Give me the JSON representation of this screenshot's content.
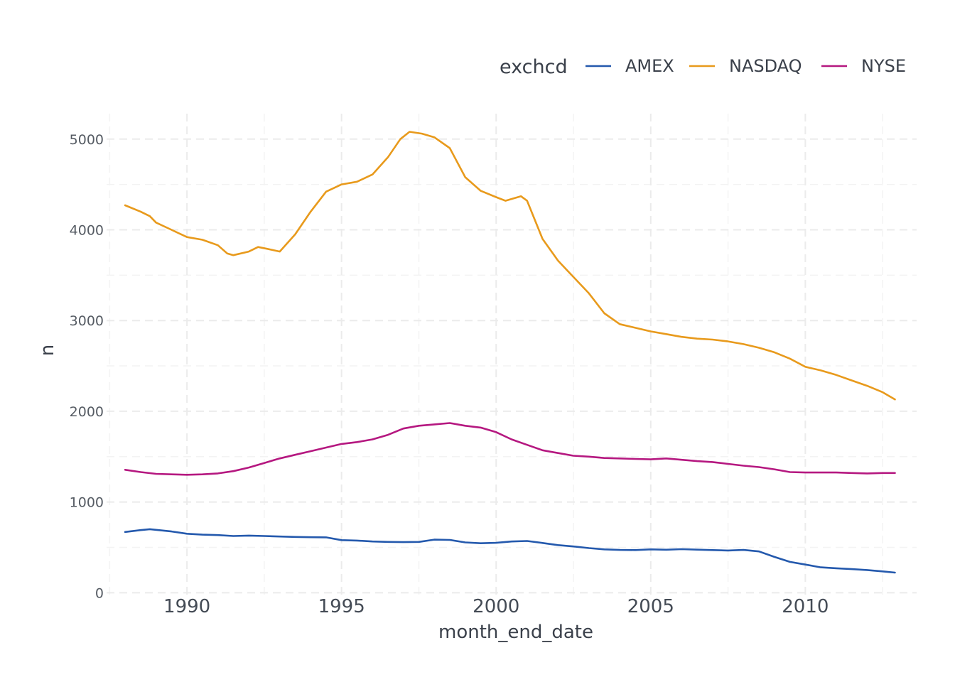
{
  "chart_data": {
    "type": "line",
    "title": "",
    "xlabel": "month_end_date",
    "ylabel": "n",
    "xlim": [
      1987.4,
      2013.6
    ],
    "ylim": [
      -60,
      5280
    ],
    "x_ticks": [
      1990,
      1995,
      2000,
      2005,
      2010
    ],
    "x_tick_labels": [
      "1990",
      "1995",
      "2000",
      "2005",
      "2010"
    ],
    "y_ticks": [
      0,
      1000,
      2000,
      3000,
      4000,
      5000
    ],
    "y_tick_labels": [
      "0",
      "1000",
      "2000",
      "3000",
      "4000",
      "5000"
    ],
    "grid": true,
    "legend": {
      "title": "exchcd",
      "position": "top-right"
    },
    "series": [
      {
        "name": "AMEX",
        "color": "#2459ad",
        "x": [
          1988.0,
          1988.5,
          1988.8,
          1989.5,
          1990.0,
          1990.5,
          1991.0,
          1991.5,
          1992.0,
          1992.5,
          1993.0,
          1993.5,
          1994.0,
          1994.5,
          1995.0,
          1995.5,
          1996.0,
          1996.5,
          1997.0,
          1997.5,
          1998.0,
          1998.5,
          1999.0,
          1999.5,
          2000.0,
          2000.5,
          2001.0,
          2001.5,
          2002.0,
          2002.5,
          2003.0,
          2003.5,
          2004.0,
          2004.5,
          2005.0,
          2005.5,
          2006.0,
          2006.5,
          2007.0,
          2007.5,
          2008.0,
          2008.5,
          2009.0,
          2009.5,
          2010.0,
          2010.5,
          2011.0,
          2011.5,
          2012.0,
          2012.5,
          2012.9
        ],
        "values": [
          670,
          690,
          700,
          675,
          650,
          640,
          635,
          625,
          630,
          625,
          620,
          615,
          612,
          610,
          580,
          575,
          565,
          560,
          558,
          560,
          585,
          582,
          555,
          545,
          550,
          565,
          570,
          548,
          525,
          510,
          492,
          478,
          472,
          470,
          478,
          474,
          480,
          475,
          470,
          465,
          472,
          455,
          395,
          340,
          310,
          280,
          270,
          260,
          250,
          235,
          222
        ]
      },
      {
        "name": "NASDAQ",
        "color": "#e89a1c",
        "x": [
          1988.0,
          1988.5,
          1988.8,
          1989.0,
          1989.5,
          1990.0,
          1990.5,
          1991.0,
          1991.3,
          1991.5,
          1992.0,
          1992.3,
          1992.6,
          1993.0,
          1993.5,
          1994.0,
          1994.5,
          1995.0,
          1995.5,
          1996.0,
          1996.5,
          1996.9,
          1997.2,
          1997.6,
          1998.0,
          1998.5,
          1999.0,
          1999.5,
          2000.0,
          2000.3,
          2000.8,
          2001.0,
          2001.5,
          2002.0,
          2002.5,
          2003.0,
          2003.5,
          2004.0,
          2004.5,
          2005.0,
          2005.5,
          2006.0,
          2006.5,
          2007.0,
          2007.5,
          2008.0,
          2008.5,
          2009.0,
          2009.5,
          2010.0,
          2010.5,
          2011.0,
          2011.5,
          2012.0,
          2012.5,
          2012.9
        ],
        "values": [
          4270,
          4200,
          4150,
          4080,
          4000,
          3920,
          3890,
          3830,
          3740,
          3720,
          3760,
          3810,
          3790,
          3760,
          3950,
          4200,
          4420,
          4500,
          4530,
          4610,
          4800,
          5000,
          5080,
          5060,
          5020,
          4900,
          4580,
          4430,
          4360,
          4320,
          4370,
          4320,
          3900,
          3660,
          3480,
          3300,
          3080,
          2960,
          2920,
          2880,
          2850,
          2820,
          2800,
          2790,
          2770,
          2740,
          2700,
          2650,
          2580,
          2490,
          2450,
          2400,
          2340,
          2280,
          2210,
          2130
        ]
      },
      {
        "name": "NYSE",
        "color": "#b51880",
        "x": [
          1988.0,
          1988.5,
          1989.0,
          1989.5,
          1990.0,
          1990.5,
          1991.0,
          1991.5,
          1992.0,
          1992.5,
          1993.0,
          1993.5,
          1994.0,
          1994.5,
          1995.0,
          1995.5,
          1996.0,
          1996.5,
          1997.0,
          1997.5,
          1998.0,
          1998.5,
          1999.0,
          1999.5,
          2000.0,
          2000.5,
          2001.0,
          2001.5,
          2002.0,
          2002.5,
          2003.0,
          2003.5,
          2004.0,
          2004.5,
          2005.0,
          2005.5,
          2006.0,
          2006.5,
          2007.0,
          2007.5,
          2008.0,
          2008.5,
          2009.0,
          2009.5,
          2010.0,
          2010.5,
          2011.0,
          2011.5,
          2012.0,
          2012.5,
          2012.9
        ],
        "values": [
          1355,
          1330,
          1310,
          1305,
          1300,
          1305,
          1315,
          1340,
          1380,
          1430,
          1480,
          1520,
          1560,
          1600,
          1640,
          1660,
          1690,
          1740,
          1810,
          1840,
          1855,
          1870,
          1840,
          1820,
          1770,
          1690,
          1630,
          1570,
          1540,
          1510,
          1500,
          1485,
          1480,
          1475,
          1470,
          1480,
          1465,
          1450,
          1440,
          1420,
          1400,
          1385,
          1360,
          1330,
          1325,
          1325,
          1325,
          1320,
          1315,
          1320,
          1320
        ]
      }
    ]
  }
}
